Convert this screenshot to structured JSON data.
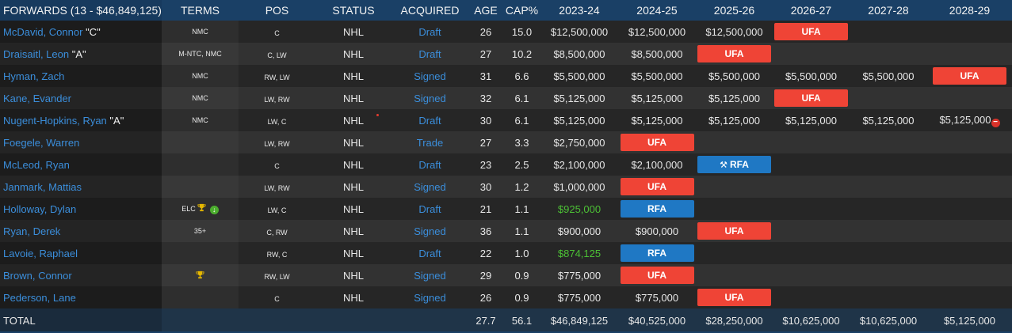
{
  "header": {
    "group": "FORWARDS (13 - $46,849,125)",
    "terms": "TERMS",
    "pos": "POS",
    "status": "STATUS",
    "acquired": "ACQUIRED",
    "age": "AGE",
    "cap": "CAP%",
    "seasons": [
      "2023-24",
      "2024-25",
      "2025-26",
      "2026-27",
      "2027-28",
      "2028-29"
    ]
  },
  "colors": {
    "ufa": "#ef4436",
    "rfa": "#1f78c4",
    "link": "#3b8edb",
    "elc_value": "#4cc035"
  },
  "players": [
    {
      "name": "McDavid, Connor",
      "tag": "\"C\"",
      "terms": "NMC",
      "pos": "C",
      "status": "NHL",
      "acquired": "Draft",
      "age": "26",
      "cap": "15.0",
      "years": [
        {
          "text": "$12,500,000"
        },
        {
          "text": "$12,500,000"
        },
        {
          "text": "$12,500,000"
        },
        {
          "badge": "UFA"
        },
        {
          "text": ""
        },
        {
          "text": ""
        }
      ]
    },
    {
      "name": "Draisaitl, Leon",
      "tag": "\"A\"",
      "terms": "M-NTC, NMC",
      "pos": "C, LW",
      "status": "NHL",
      "acquired": "Draft",
      "age": "27",
      "cap": "10.2",
      "years": [
        {
          "text": "$8,500,000"
        },
        {
          "text": "$8,500,000"
        },
        {
          "badge": "UFA"
        },
        {
          "text": ""
        },
        {
          "text": ""
        },
        {
          "text": ""
        }
      ]
    },
    {
      "name": "Hyman, Zach",
      "tag": "",
      "terms": "NMC",
      "pos": "RW, LW",
      "status": "NHL",
      "acquired": "Signed",
      "age": "31",
      "cap": "6.6",
      "years": [
        {
          "text": "$5,500,000"
        },
        {
          "text": "$5,500,000"
        },
        {
          "text": "$5,500,000"
        },
        {
          "text": "$5,500,000"
        },
        {
          "text": "$5,500,000"
        },
        {
          "badge": "UFA"
        }
      ]
    },
    {
      "name": "Kane, Evander",
      "tag": "",
      "terms": "NMC",
      "pos": "LW, RW",
      "status": "NHL",
      "acquired": "Signed",
      "age": "32",
      "cap": "6.1",
      "years": [
        {
          "text": "$5,125,000"
        },
        {
          "text": "$5,125,000"
        },
        {
          "text": "$5,125,000"
        },
        {
          "badge": "UFA"
        },
        {
          "text": ""
        },
        {
          "text": ""
        }
      ]
    },
    {
      "name": "Nugent-Hopkins, Ryan",
      "tag": "\"A\"",
      "terms": "NMC",
      "pos": "LW, C",
      "status": "NHL",
      "status_dot": true,
      "acquired": "Draft",
      "age": "30",
      "cap": "6.1",
      "years": [
        {
          "text": "$5,125,000"
        },
        {
          "text": "$5,125,000"
        },
        {
          "text": "$5,125,000"
        },
        {
          "text": "$5,125,000"
        },
        {
          "text": "$5,125,000"
        },
        {
          "text": "$5,125,000",
          "icon": "minus-circle-icon"
        }
      ]
    },
    {
      "name": "Foegele, Warren",
      "tag": "",
      "terms": "",
      "pos": "LW, RW",
      "status": "NHL",
      "acquired": "Trade",
      "age": "27",
      "cap": "3.3",
      "years": [
        {
          "text": "$2,750,000"
        },
        {
          "badge": "UFA"
        },
        {
          "text": ""
        },
        {
          "text": ""
        },
        {
          "text": ""
        },
        {
          "text": ""
        }
      ]
    },
    {
      "name": "McLeod, Ryan",
      "tag": "",
      "terms": "",
      "pos": "C",
      "status": "NHL",
      "acquired": "Draft",
      "age": "23",
      "cap": "2.5",
      "years": [
        {
          "text": "$2,100,000"
        },
        {
          "text": "$2,100,000"
        },
        {
          "badge": "RFA",
          "icon": "gavel-icon"
        },
        {
          "text": ""
        },
        {
          "text": ""
        },
        {
          "text": ""
        }
      ]
    },
    {
      "name": "Janmark, Mattias",
      "tag": "",
      "terms": "",
      "pos": "LW, RW",
      "status": "NHL",
      "acquired": "Signed",
      "age": "30",
      "cap": "1.2",
      "years": [
        {
          "text": "$1,000,000"
        },
        {
          "badge": "UFA"
        },
        {
          "text": ""
        },
        {
          "text": ""
        },
        {
          "text": ""
        },
        {
          "text": ""
        }
      ]
    },
    {
      "name": "Holloway, Dylan",
      "tag": "",
      "terms": "ELC",
      "terms_icons": [
        "trophy-icon",
        "elc-bonus-icon"
      ],
      "pos": "LW, C",
      "status": "NHL",
      "acquired": "Draft",
      "age": "21",
      "cap": "1.1",
      "years": [
        {
          "text": "$925,000",
          "green": true
        },
        {
          "badge": "RFA"
        },
        {
          "text": ""
        },
        {
          "text": ""
        },
        {
          "text": ""
        },
        {
          "text": ""
        }
      ]
    },
    {
      "name": "Ryan, Derek",
      "tag": "",
      "terms": "35+",
      "pos": "C, RW",
      "status": "NHL",
      "acquired": "Signed",
      "age": "36",
      "cap": "1.1",
      "years": [
        {
          "text": "$900,000"
        },
        {
          "text": "$900,000"
        },
        {
          "badge": "UFA"
        },
        {
          "text": ""
        },
        {
          "text": ""
        },
        {
          "text": ""
        }
      ]
    },
    {
      "name": "Lavoie, Raphael",
      "tag": "",
      "terms": "",
      "pos": "RW, C",
      "status": "NHL",
      "acquired": "Draft",
      "age": "22",
      "cap": "1.0",
      "years": [
        {
          "text": "$874,125",
          "green": true
        },
        {
          "badge": "RFA"
        },
        {
          "text": ""
        },
        {
          "text": ""
        },
        {
          "text": ""
        },
        {
          "text": ""
        }
      ]
    },
    {
      "name": "Brown, Connor",
      "tag": "",
      "terms": "",
      "terms_icons": [
        "trophy-icon"
      ],
      "pos": "RW, LW",
      "status": "NHL",
      "acquired": "Signed",
      "age": "29",
      "cap": "0.9",
      "years": [
        {
          "text": "$775,000"
        },
        {
          "badge": "UFA"
        },
        {
          "text": ""
        },
        {
          "text": ""
        },
        {
          "text": ""
        },
        {
          "text": ""
        }
      ]
    },
    {
      "name": "Pederson, Lane",
      "tag": "",
      "terms": "",
      "pos": "C",
      "status": "NHL",
      "acquired": "Signed",
      "age": "26",
      "cap": "0.9",
      "years": [
        {
          "text": "$775,000"
        },
        {
          "text": "$775,000"
        },
        {
          "badge": "UFA"
        },
        {
          "text": ""
        },
        {
          "text": ""
        },
        {
          "text": ""
        }
      ]
    }
  ],
  "total": {
    "label": "TOTAL",
    "age": "27.7",
    "cap": "56.1",
    "years": [
      "$46,849,125",
      "$40,525,000",
      "$28,250,000",
      "$10,625,000",
      "$10,625,000",
      "$5,125,000"
    ]
  }
}
